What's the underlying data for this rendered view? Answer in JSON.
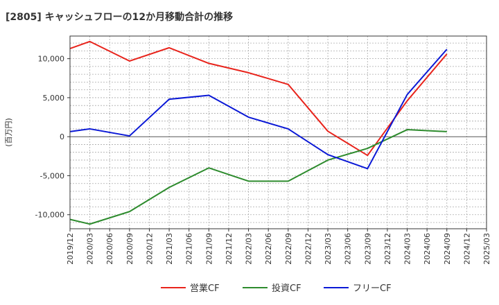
{
  "chart_data": {
    "type": "line",
    "title": "[2805]  キャッシュフローの12か月移動合計の推移",
    "ylabel": "(百万円)",
    "xlabel": "",
    "x_ticks": [
      "2019/12",
      "2020/03",
      "2020/06",
      "2020/09",
      "2020/12",
      "2021/03",
      "2021/06",
      "2021/09",
      "2021/12",
      "2022/03",
      "2022/06",
      "2022/09",
      "2022/12",
      "2023/03",
      "2023/06",
      "2023/09",
      "2023/12",
      "2024/03",
      "2024/06",
      "2024/09",
      "2024/12",
      "2025/03"
    ],
    "y_ticks": [
      10000,
      5000,
      0,
      -5000,
      -10000
    ],
    "y_tick_labels": [
      "10,000",
      "5,000",
      "0",
      "-5,000",
      "-10,000"
    ],
    "ylim": [
      -11800,
      12900
    ],
    "grid": true,
    "legend_position": "bottom",
    "series": [
      {
        "name": "営業CF",
        "color": "#e8231b",
        "x": [
          "2019/12",
          "2020/03",
          "2020/09",
          "2021/03",
          "2021/09",
          "2022/03",
          "2022/09",
          "2023/03",
          "2023/09",
          "2024/03",
          "2024/09"
        ],
        "values": [
          11300,
          12200,
          9700,
          11400,
          9400,
          8200,
          6700,
          700,
          -2400,
          4600,
          10600
        ]
      },
      {
        "name": "投資CF",
        "color": "#2d8b2d",
        "x": [
          "2019/12",
          "2020/03",
          "2020/09",
          "2021/03",
          "2021/09",
          "2022/03",
          "2022/09",
          "2023/03",
          "2023/09",
          "2024/03",
          "2024/09"
        ],
        "values": [
          -10600,
          -11200,
          -9600,
          -6500,
          -4000,
          -5700,
          -5700,
          -3000,
          -1500,
          900,
          650
        ]
      },
      {
        "name": "フリーCF",
        "color": "#0a18d6",
        "x": [
          "2019/12",
          "2020/03",
          "2020/09",
          "2021/03",
          "2021/09",
          "2022/03",
          "2022/09",
          "2023/03",
          "2023/09",
          "2024/03",
          "2024/09"
        ],
        "values": [
          650,
          1000,
          100,
          4800,
          5300,
          2500,
          1000,
          -2300,
          -4100,
          5400,
          11200
        ]
      }
    ]
  }
}
